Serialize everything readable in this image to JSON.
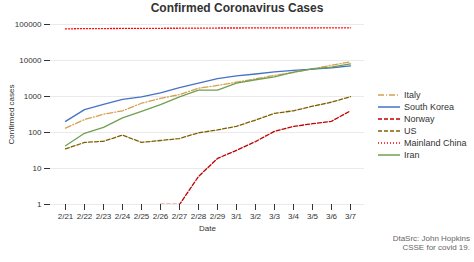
{
  "chart_data": {
    "type": "line",
    "title": "Confirmed Coronavirus Cases",
    "xlabel": "Date",
    "ylabel": "Confirmed cases",
    "categories": [
      "2/21",
      "2/22",
      "2/23",
      "2/24",
      "2/25",
      "2/26",
      "2/27",
      "2/28",
      "2/29",
      "3/1",
      "3/2",
      "3/3",
      "3/4",
      "3/5",
      "3/6",
      "3/7"
    ],
    "series": [
      {
        "name": "Italy",
        "color": "#d4a050",
        "line_style": "dashdot",
        "values": [
          132,
          229,
          322,
          400,
          650,
          888,
          1128,
          1694,
          2036,
          2502,
          3089,
          3858,
          4636,
          5883,
          7375,
          9172
        ]
      },
      {
        "name": "South Korea",
        "color": "#4472c4",
        "line_style": "solid",
        "values": [
          204,
          433,
          602,
          833,
          977,
          1261,
          1766,
          2337,
          3150,
          3736,
          4212,
          4812,
          5328,
          5766,
          6284,
          7134
        ]
      },
      {
        "name": "Norway",
        "color": "#c00000",
        "line_style": "dashed",
        "values": [
          null,
          null,
          null,
          null,
          null,
          1,
          1,
          6,
          19,
          32,
          56,
          108,
          147,
          176,
          205,
          400
        ]
      },
      {
        "name": "US",
        "color": "#7f6000",
        "line_style": "dashed",
        "values": [
          35,
          53,
          57,
          85,
          53,
          60,
          68,
          98,
          118,
          149,
          221,
          341,
          401,
          537,
          696,
          987
        ]
      },
      {
        "name": "Mainland China",
        "color": "#ff0000",
        "line_style": "dotted",
        "values": [
          75465,
          76936,
          77150,
          77658,
          78064,
          78497,
          78824,
          79251,
          79824,
          80026,
          80151,
          80270,
          80409,
          80551,
          80651,
          80695
        ]
      },
      {
        "name": "Iran",
        "color": "#70a050",
        "line_style": "solid",
        "values": [
          43,
          95,
          139,
          255,
          388,
          593,
          978,
          1501,
          1501,
          2336,
          2922,
          3513,
          4747,
          5823,
          6566,
          8042
        ]
      }
    ],
    "log": "y",
    "ylim": [
      1,
      100000
    ],
    "yticks": [
      1,
      10,
      100,
      1000,
      10000,
      100000
    ],
    "grid": true,
    "legend": "right",
    "annotations": [
      "DtaSrc: John Hopkins\nCSSE for covid 19."
    ]
  }
}
